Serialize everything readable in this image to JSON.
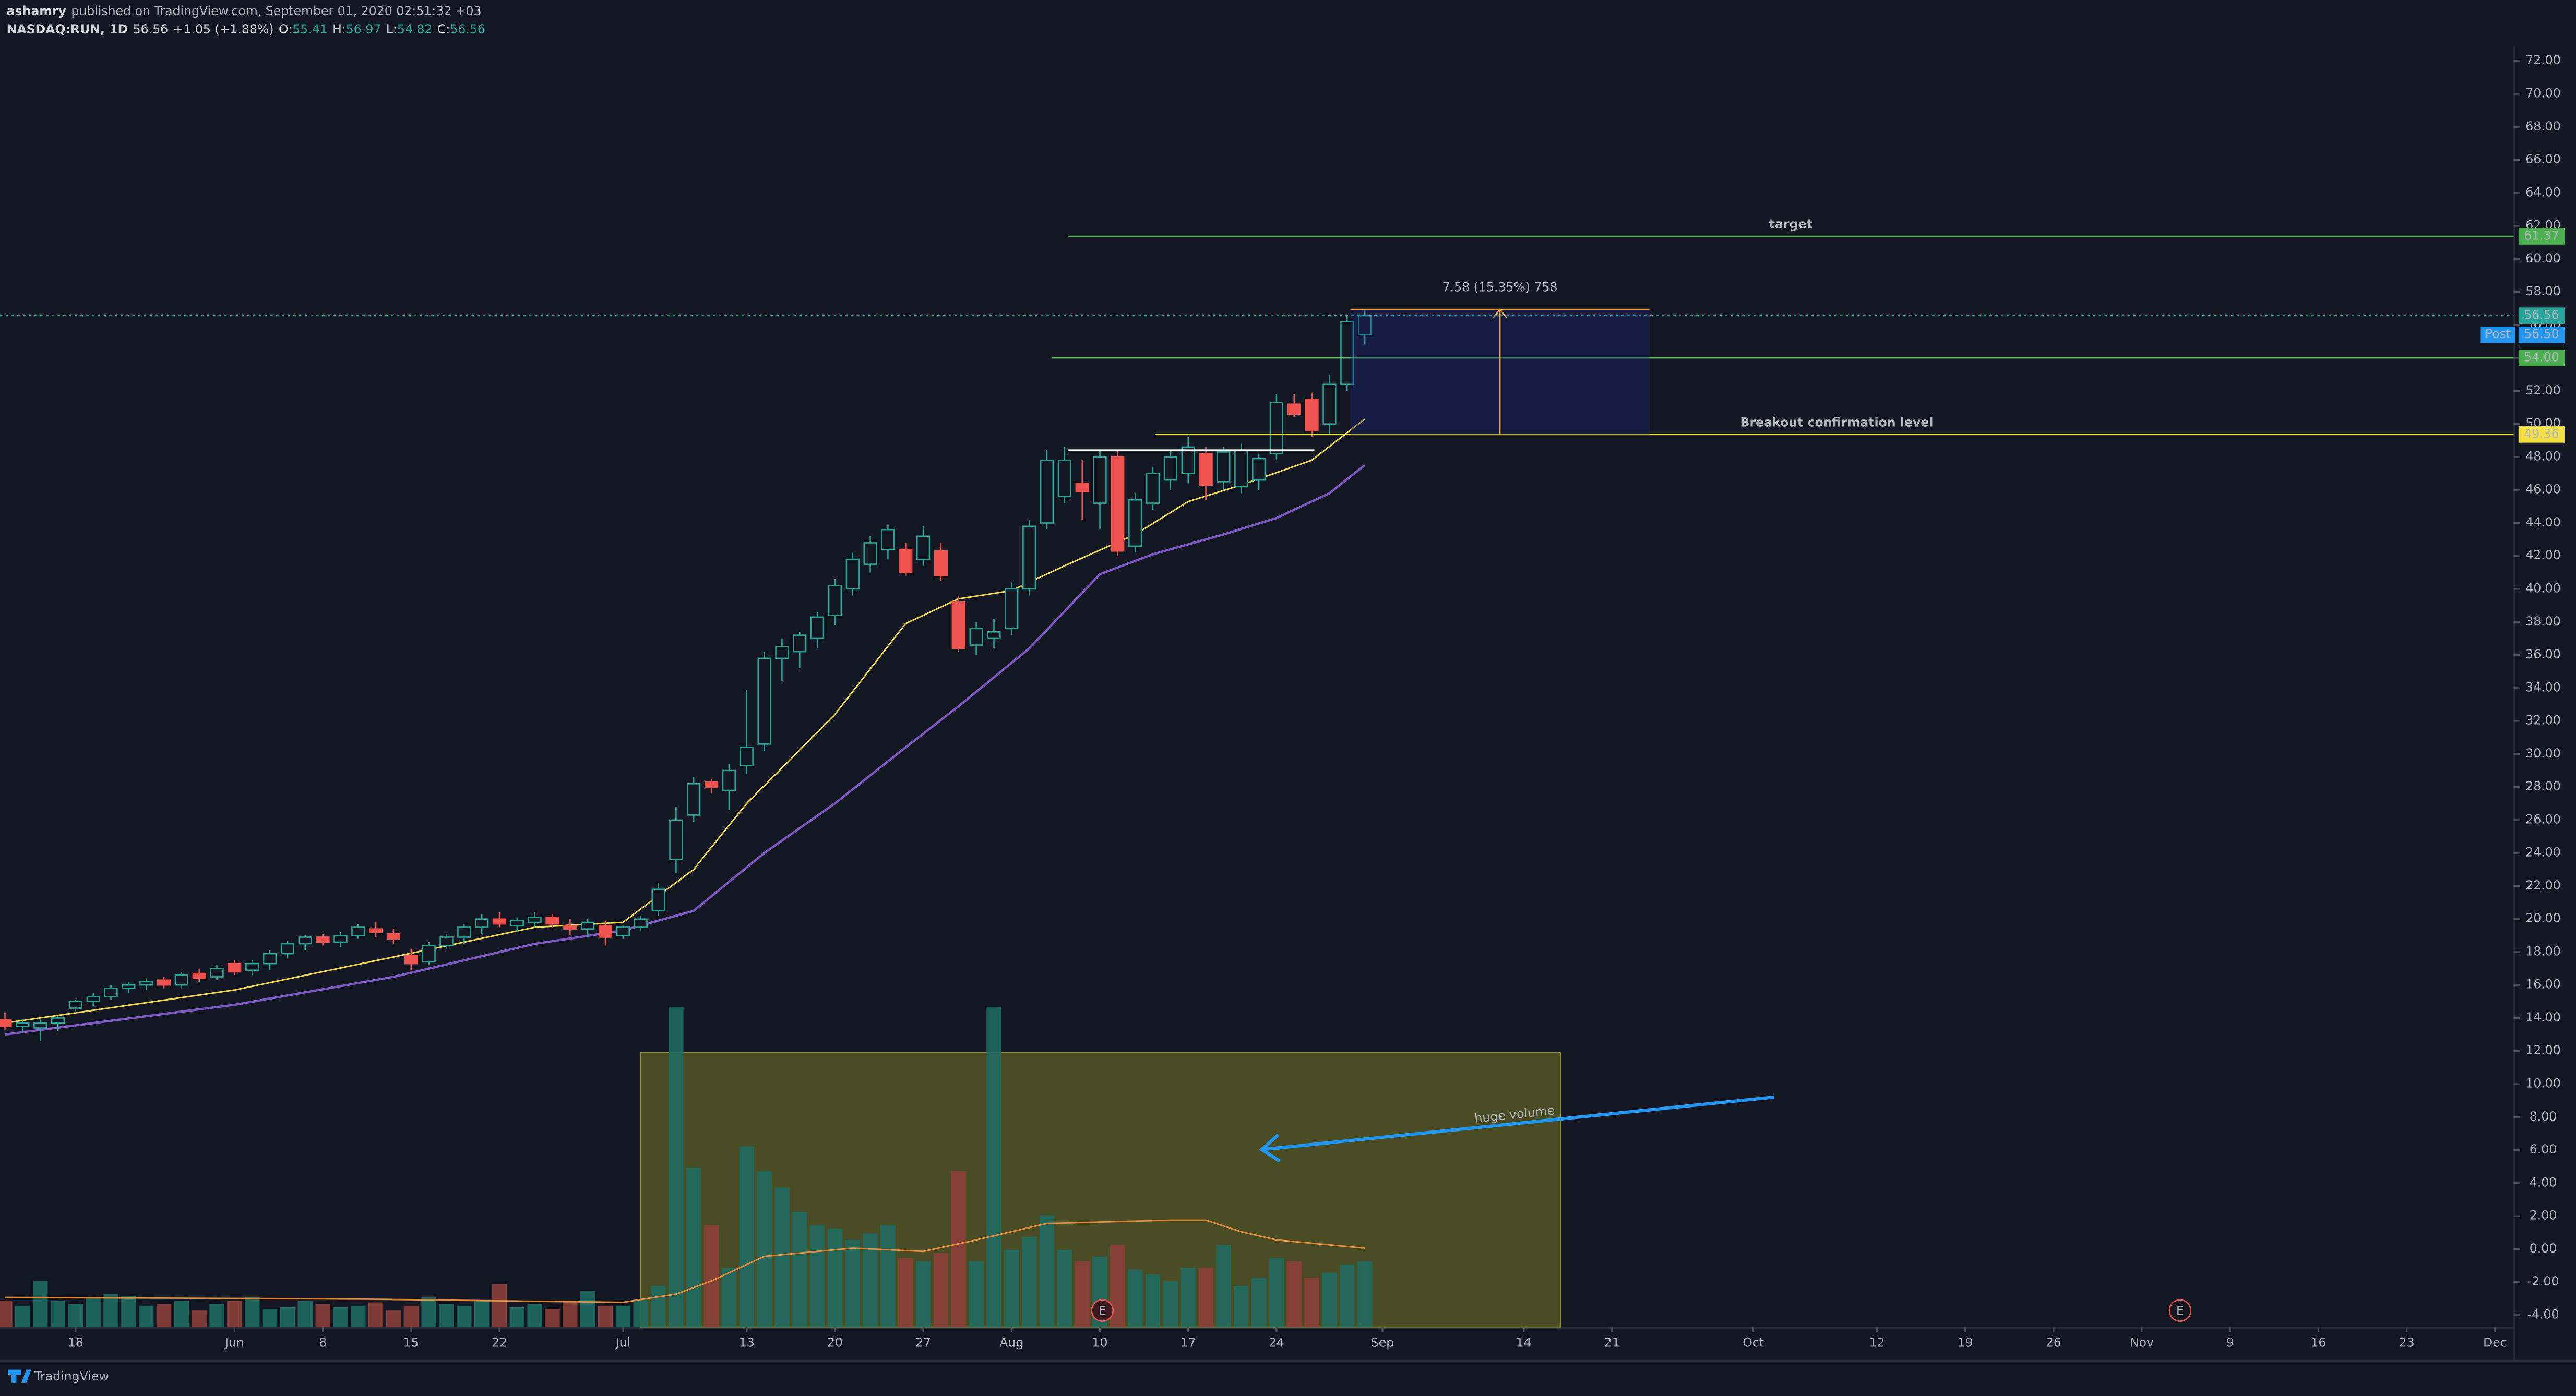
{
  "header": {
    "user": "ashamry",
    "published": "published on TradingView.com, September 01, 2020 02:51:32 +03",
    "symbol": "NASDAQ:RUN, 1D",
    "change": "+1.05 (+1.88%)",
    "o": "O:",
    "h": "H:",
    "l": "L:",
    "c": "C:"
  },
  "footer": {
    "brand": "TradingView"
  },
  "chart_data": {
    "type": "candlestick",
    "x": [
      0,
      1,
      2,
      3,
      4,
      5,
      6,
      7,
      8,
      9,
      10,
      11,
      12,
      13,
      14,
      15,
      16,
      17,
      18,
      19,
      20,
      21,
      22,
      23,
      24,
      25,
      26,
      27,
      28,
      29,
      30,
      31,
      32,
      33,
      34,
      35,
      36,
      37,
      38,
      39,
      40,
      41,
      42,
      43,
      44,
      45,
      46,
      47,
      48,
      49,
      50,
      51,
      52,
      53,
      54,
      55,
      56,
      57,
      58,
      59,
      60,
      61,
      62,
      63,
      64,
      65,
      66,
      67,
      68,
      69,
      70,
      71,
      72,
      73,
      74,
      75,
      76,
      77
    ],
    "ohlc": {
      "open": [
        13.9,
        13.5,
        13.4,
        13.7,
        14.6,
        15.0,
        15.3,
        15.8,
        16.0,
        16.3,
        16.0,
        16.7,
        16.5,
        17.3,
        16.9,
        17.3,
        17.9,
        18.5,
        18.9,
        18.6,
        19.0,
        19.4,
        19.1,
        17.8,
        17.4,
        18.4,
        18.9,
        19.5,
        20.0,
        19.6,
        19.8,
        20.1,
        19.6,
        19.4,
        19.6,
        19.0,
        19.5,
        20.5,
        23.6,
        26.3,
        28.3,
        27.8,
        29.3,
        30.6,
        35.8,
        36.2,
        37.0,
        38.4,
        40.0,
        41.5,
        42.4,
        42.4,
        41.8,
        42.3,
        39.2,
        36.6,
        37.0,
        37.6,
        40.0,
        44.0,
        45.6,
        46.4,
        45.2,
        48.0,
        42.6,
        45.2,
        46.6,
        47.0,
        48.2,
        46.5,
        46.2,
        46.6,
        48.2,
        51.2,
        51.5,
        50.0,
        52.4,
        55.41
      ],
      "high": [
        14.3,
        13.9,
        13.9,
        14.1,
        15.1,
        15.5,
        16.0,
        16.2,
        16.4,
        16.5,
        16.8,
        17.0,
        17.2,
        17.5,
        17.5,
        18.1,
        18.7,
        19.0,
        19.1,
        19.2,
        19.7,
        19.8,
        19.4,
        18.2,
        18.6,
        19.1,
        19.7,
        20.3,
        20.4,
        20.1,
        20.4,
        20.3,
        20.0,
        20.0,
        19.9,
        19.6,
        20.2,
        22.2,
        26.8,
        28.6,
        28.5,
        29.4,
        33.9,
        36.2,
        37.0,
        37.4,
        38.6,
        40.6,
        42.2,
        43.2,
        43.9,
        42.8,
        43.8,
        42.8,
        39.6,
        38.0,
        38.2,
        40.4,
        44.2,
        48.4,
        48.6,
        47.8,
        48.4,
        48.4,
        45.8,
        47.4,
        48.4,
        49.2,
        48.6,
        48.6,
        48.8,
        48.2,
        51.8,
        51.8,
        51.9,
        53.0,
        56.6,
        56.97
      ],
      "low": [
        13.3,
        13.1,
        12.6,
        13.2,
        14.3,
        14.7,
        15.1,
        15.5,
        15.7,
        15.8,
        15.8,
        16.2,
        16.3,
        16.6,
        16.6,
        16.9,
        17.6,
        18.1,
        18.4,
        18.3,
        18.8,
        18.9,
        18.5,
        16.9,
        17.2,
        18.2,
        18.5,
        19.1,
        19.5,
        19.2,
        19.5,
        19.5,
        19.0,
        18.9,
        18.4,
        18.8,
        19.3,
        20.2,
        22.8,
        25.9,
        27.6,
        26.6,
        28.8,
        30.2,
        34.4,
        35.2,
        36.4,
        37.8,
        39.6,
        41.0,
        41.8,
        40.8,
        41.4,
        40.5,
        36.2,
        36.0,
        36.4,
        37.2,
        39.6,
        43.6,
        45.2,
        44.2,
        43.6,
        42.0,
        42.2,
        44.8,
        46.0,
        46.4,
        45.4,
        46.0,
        45.8,
        46.0,
        47.8,
        50.4,
        49.2,
        49.4,
        52.0,
        54.82
      ],
      "close": [
        13.5,
        13.7,
        13.7,
        14.0,
        15.0,
        15.3,
        15.8,
        16.0,
        16.2,
        16.0,
        16.6,
        16.4,
        17.0,
        16.8,
        17.3,
        17.9,
        18.5,
        18.9,
        18.6,
        19.0,
        19.5,
        19.2,
        18.8,
        17.3,
        18.4,
        18.9,
        19.5,
        20.0,
        19.7,
        19.9,
        20.1,
        19.7,
        19.4,
        19.8,
        18.9,
        19.5,
        20.0,
        21.8,
        26.0,
        28.2,
        28.0,
        29.0,
        30.4,
        35.8,
        36.5,
        37.2,
        38.3,
        40.2,
        41.8,
        42.8,
        43.6,
        41.0,
        43.2,
        40.8,
        36.4,
        37.6,
        37.4,
        40.0,
        43.8,
        47.8,
        47.8,
        45.9,
        48.0,
        42.3,
        45.4,
        47.0,
        48.0,
        48.6,
        46.3,
        48.3,
        48.4,
        47.9,
        51.3,
        50.6,
        49.6,
        52.4,
        56.2,
        56.56
      ]
    },
    "up_color": "#26a69a",
    "down_color": "#ef5350",
    "lines": [
      {
        "color": "#f0d84a",
        "x": [
          0,
          13,
          22,
          30,
          35,
          39,
          42,
          47,
          51,
          54,
          57,
          60,
          64,
          67,
          70,
          74,
          77
        ],
        "values": [
          13.7,
          15.7,
          17.7,
          19.5,
          19.8,
          23,
          27,
          32.4,
          37.9,
          39.4,
          39.9,
          41.4,
          43.3,
          45.3,
          46.3,
          47.8,
          50.3
        ]
      },
      {
        "color": "#7e57c2",
        "x": [
          0,
          13,
          22,
          30,
          35,
          39,
          43,
          47,
          51,
          54,
          58,
          62,
          65,
          69,
          72,
          75,
          77
        ],
        "values": [
          13,
          14.8,
          16.5,
          18.5,
          19.3,
          20.5,
          24,
          27,
          30.4,
          32.9,
          36.4,
          40.9,
          42.1,
          43.3,
          44.3,
          45.8,
          47.5
        ]
      }
    ],
    "volume": {
      "values": [
        1.6,
        1.3,
        2.8,
        1.6,
        1.4,
        1.8,
        2.0,
        1.9,
        1.3,
        1.4,
        1.6,
        1.0,
        1.4,
        1.6,
        1.8,
        1.1,
        1.2,
        1.6,
        1.4,
        1.2,
        1.3,
        1.5,
        1.0,
        1.3,
        1.8,
        1.4,
        1.3,
        1.6,
        2.6,
        1.2,
        1.4,
        1.1,
        1.6,
        2.2,
        1.3,
        1.3,
        1.7,
        2.5,
        19.5,
        9.7,
        6.2,
        3.6,
        11.0,
        9.5,
        8.5,
        7.0,
        6.2,
        6.0,
        5.3,
        5.7,
        6.2,
        4.2,
        4.0,
        4.5,
        9.5,
        4.0,
        19.5,
        4.7,
        5.5,
        6.8,
        4.7,
        4.0,
        4.3,
        5.0,
        3.5,
        3.2,
        2.8,
        3.6,
        3.6,
        5.0,
        2.5,
        3.0,
        4.2,
        4.0,
        3.0,
        3.3,
        3.8,
        4.0
      ],
      "ylim": [
        0,
        78
      ],
      "up_color": "#1f6b62",
      "down_color": "#8c3f3a",
      "ma": {
        "color": "#e08a3c",
        "x": [
          0,
          20,
          35,
          38,
          40,
          43,
          48,
          52,
          55,
          59,
          66,
          68,
          70,
          72,
          77
        ],
        "values": [
          1.8,
          1.7,
          1.5,
          2.0,
          2.8,
          4.3,
          4.8,
          4.6,
          5.3,
          6.3,
          6.5,
          6.5,
          5.8,
          5.3,
          4.8
        ]
      }
    },
    "xlim": [
      -0.28,
      142.05
    ],
    "ylim": [
      -4.72,
      72.9
    ],
    "xticks": [
      {
        "value": 4,
        "label": "18"
      },
      {
        "value": 13,
        "label": "Jun"
      },
      {
        "value": 18,
        "label": "8"
      },
      {
        "value": 23,
        "label": "15"
      },
      {
        "value": 28,
        "label": "22"
      },
      {
        "value": 35,
        "label": "Jul"
      },
      {
        "value": 42,
        "label": "13"
      },
      {
        "value": 47,
        "label": "20"
      },
      {
        "value": 52,
        "label": "27"
      },
      {
        "value": 57,
        "label": "Aug"
      },
      {
        "value": 62,
        "label": "10"
      },
      {
        "value": 67,
        "label": "17"
      },
      {
        "value": 72,
        "label": "24"
      },
      {
        "value": 78,
        "label": "Sep"
      },
      {
        "value": 86,
        "label": "14"
      },
      {
        "value": 91,
        "label": "21"
      },
      {
        "value": 99,
        "label": "Oct"
      },
      {
        "value": 106,
        "label": "12"
      },
      {
        "value": 111,
        "label": "19"
      },
      {
        "value": 116,
        "label": "26"
      },
      {
        "value": 121,
        "label": "Nov"
      },
      {
        "value": 126,
        "label": "9"
      },
      {
        "value": 131,
        "label": "16"
      },
      {
        "value": 136,
        "label": "23"
      },
      {
        "value": 141,
        "label": "Dec"
      }
    ],
    "yticks": [
      {
        "value": 72,
        "label": "72.00"
      },
      {
        "value": 70,
        "label": "70.00"
      },
      {
        "value": 68,
        "label": "68.00"
      },
      {
        "value": 66,
        "label": "66.00"
      },
      {
        "value": 64,
        "label": "64.00"
      },
      {
        "value": 62,
        "label": "62.00"
      },
      {
        "value": 60,
        "label": "60.00"
      },
      {
        "value": 58,
        "label": "58.00"
      },
      {
        "value": 56,
        "label": "56.00"
      },
      {
        "value": 54,
        "label": "54.00"
      },
      {
        "value": 52,
        "label": "52.00"
      },
      {
        "value": 50,
        "label": "50.00"
      },
      {
        "value": 48,
        "label": "48.00"
      },
      {
        "value": 46,
        "label": "46.00"
      },
      {
        "value": 44,
        "label": "44.00"
      },
      {
        "value": 42,
        "label": "42.00"
      },
      {
        "value": 40,
        "label": "40.00"
      },
      {
        "value": 38,
        "label": "38.00"
      },
      {
        "value": 36,
        "label": "36.00"
      },
      {
        "value": 34,
        "label": "34.00"
      },
      {
        "value": 32,
        "label": "32.00"
      },
      {
        "value": 30,
        "label": "30.00"
      },
      {
        "value": 28,
        "label": "28.00"
      },
      {
        "value": 26,
        "label": "26.00"
      },
      {
        "value": 24,
        "label": "24.00"
      },
      {
        "value": 22,
        "label": "22.00"
      },
      {
        "value": 20,
        "label": "20.00"
      },
      {
        "value": 18,
        "label": "18.00"
      },
      {
        "value": 16,
        "label": "16.00"
      },
      {
        "value": 14,
        "label": "14.00"
      },
      {
        "value": 12,
        "label": "12.00"
      },
      {
        "value": 10,
        "label": "10.00"
      },
      {
        "value": 8,
        "label": "8.00"
      },
      {
        "value": 6,
        "label": "6.00"
      },
      {
        "value": 4,
        "label": "4.00"
      },
      {
        "value": 2,
        "label": "2.00"
      },
      {
        "value": 0,
        "label": "0.00"
      },
      {
        "value": -2,
        "label": "-2.00"
      },
      {
        "value": -4,
        "label": "-4.00"
      }
    ],
    "levels": {
      "values": [
        61.37,
        54,
        49.36
      ],
      "value_labels": [
        "61.37",
        "54.00",
        "49.36"
      ],
      "colors": [
        "#4caf50",
        "#4caf50",
        "#f5e042"
      ],
      "names": [
        "target",
        null,
        "Breakout confirmation level"
      ]
    },
    "resistance": {
      "value": 48.4,
      "color": "#ffffff"
    },
    "measure": {
      "change": 7.58,
      "label": "7.58 (15.35%) 758",
      "color": "#f39c34"
    },
    "post": {
      "name": "Post",
      "price": {
        "value": 56.5,
        "label": "56.50"
      },
      "color": "#2196f3"
    },
    "annotation": "huge volume",
    "earnings": [
      "E",
      "E"
    ]
  }
}
